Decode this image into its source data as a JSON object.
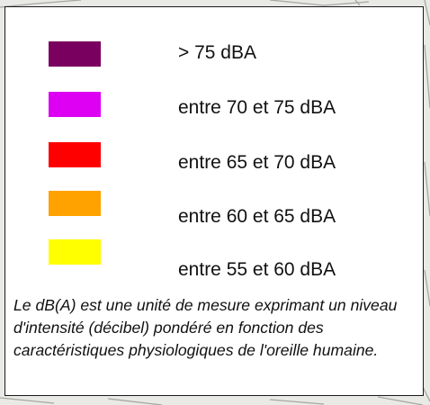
{
  "legend": {
    "items": [
      {
        "label": "> 75 dBA",
        "color": "#7a0060"
      },
      {
        "label": "entre 70 et 75 dBA",
        "color": "#dd00f2"
      },
      {
        "label": "entre 65 et 70 dBA",
        "color": "#ff0000"
      },
      {
        "label": "entre 60 et 65 dBA",
        "color": "#ffa200"
      },
      {
        "label": "entre 55 et 60 dBA",
        "color": "#ffff00"
      }
    ],
    "note": "Le dB(A) est une unité de mesure exprimant un niveau d'intensité (décibel) pondéré en fonction des caractéristiques physiologiques de l'oreille humaine."
  },
  "map": {
    "background_color": "#e9e9e6",
    "line_color": "#a7a7a3"
  }
}
